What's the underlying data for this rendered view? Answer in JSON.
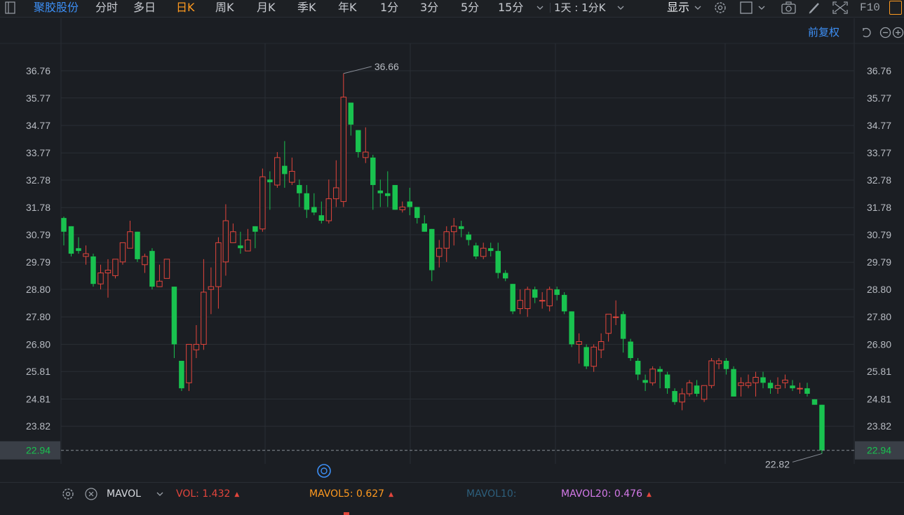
{
  "toolbar": {
    "stock_name": "聚胶股份",
    "periods": [
      "分时",
      "多日",
      "日K",
      "周K",
      "月K",
      "季K",
      "年K",
      "1分",
      "3分",
      "5分",
      "15分"
    ],
    "active_period": "日K",
    "interval_select": "1天 : 1分K",
    "display_label": "显示",
    "f10_label": "F10"
  },
  "chart": {
    "adjust_label": "前复权",
    "price_ticks": [
      "36.76",
      "35.77",
      "34.77",
      "33.77",
      "32.78",
      "31.78",
      "30.79",
      "29.79",
      "28.80",
      "27.80",
      "26.80",
      "25.81",
      "24.81",
      "23.82"
    ],
    "current_price": "22.94",
    "high_annotation": "36.66",
    "low_annotation": "22.82"
  },
  "indicator": {
    "name": "MAVOL",
    "vol_label": "VOL:",
    "vol_value": "1.432",
    "ma5_label": "MAVOL5:",
    "ma5_value": "0.627",
    "ma10_label": "MAVOL10:",
    "ma20_label": "MAVOL20:",
    "ma20_value": "0.476"
  },
  "colors": {
    "up": "#e2453c",
    "down": "#19c24f",
    "accent_blue": "#3d8ff5",
    "accent_orange": "#ff9a1f",
    "ma20_color": "#d479e8",
    "ma10_color": "#2d5f7c"
  },
  "chart_data": {
    "type": "candlestick",
    "y_axis_ticks": [
      36.76,
      35.77,
      34.77,
      33.77,
      32.78,
      31.78,
      30.79,
      29.79,
      28.8,
      27.8,
      26.8,
      25.81,
      24.81,
      23.82
    ],
    "ylim": [
      22.4,
      37.6
    ],
    "last_price": 22.94,
    "max_high": 36.66,
    "min_low": 22.82,
    "candles": [
      [
        31.4,
        30.9,
        31.45,
        30.4
      ],
      [
        31.1,
        30.1,
        31.1,
        30.0
      ],
      [
        30.3,
        30.2,
        30.7,
        30.1
      ],
      [
        30.0,
        30.1,
        30.4,
        29.7
      ],
      [
        30.0,
        29.0,
        30.1,
        28.9
      ],
      [
        29.0,
        29.4,
        29.7,
        28.8
      ],
      [
        29.4,
        29.5,
        29.9,
        28.5
      ],
      [
        29.3,
        29.9,
        29.9,
        29.2
      ],
      [
        29.8,
        30.5,
        30.5,
        29.7
      ],
      [
        30.3,
        30.9,
        31.3,
        30.3
      ],
      [
        30.9,
        29.9,
        30.9,
        29.8
      ],
      [
        29.7,
        30.0,
        30.1,
        29.4
      ],
      [
        30.2,
        28.9,
        30.3,
        28.8
      ],
      [
        28.9,
        29.1,
        29.7,
        28.9
      ],
      [
        29.2,
        29.9,
        29.9,
        29.2
      ],
      [
        28.9,
        26.8,
        28.9,
        26.3
      ],
      [
        26.2,
        25.2,
        26.2,
        25.1
      ],
      [
        25.4,
        26.8,
        26.8,
        25.1
      ],
      [
        26.6,
        26.8,
        27.5,
        26.3
      ],
      [
        26.8,
        28.7,
        29.9,
        26.6
      ],
      [
        28.8,
        28.9,
        29.6,
        27.9
      ],
      [
        28.9,
        30.5,
        30.7,
        28.1
      ],
      [
        29.8,
        31.3,
        31.9,
        29.3
      ],
      [
        30.5,
        30.9,
        31.2,
        30.5
      ],
      [
        30.4,
        30.3,
        30.9,
        30.1
      ],
      [
        30.2,
        30.6,
        31.0,
        30.2
      ],
      [
        31.1,
        30.9,
        31.1,
        30.3
      ],
      [
        31.0,
        32.9,
        33.2,
        30.9
      ],
      [
        32.8,
        32.7,
        33.1,
        31.7
      ],
      [
        32.6,
        33.6,
        33.8,
        32.5
      ],
      [
        33.3,
        33.0,
        34.2,
        32.5
      ],
      [
        32.7,
        33.1,
        33.6,
        32.6
      ],
      [
        32.6,
        32.3,
        32.8,
        31.8
      ],
      [
        32.3,
        31.7,
        32.6,
        31.4
      ],
      [
        31.8,
        31.6,
        32.3,
        31.5
      ],
      [
        31.5,
        31.3,
        32.0,
        31.2
      ],
      [
        31.3,
        32.1,
        32.8,
        31.2
      ],
      [
        32.1,
        32.5,
        33.5,
        31.8
      ],
      [
        32.0,
        35.8,
        36.66,
        31.8
      ],
      [
        35.6,
        34.8,
        35.6,
        34.4
      ],
      [
        34.6,
        33.8,
        34.6,
        33.6
      ],
      [
        33.6,
        33.8,
        34.7,
        33.4
      ],
      [
        33.6,
        32.6,
        33.7,
        31.7
      ],
      [
        32.4,
        32.3,
        32.8,
        31.8
      ],
      [
        32.3,
        32.2,
        33.1,
        31.8
      ],
      [
        32.6,
        31.7,
        32.6,
        31.7
      ],
      [
        31.7,
        31.8,
        32.0,
        31.6
      ],
      [
        32.0,
        31.8,
        32.5,
        31.5
      ],
      [
        31.8,
        31.4,
        31.8,
        31.2
      ],
      [
        31.2,
        30.9,
        31.5,
        30.9
      ],
      [
        31.0,
        29.5,
        31.0,
        29.1
      ],
      [
        30.0,
        30.3,
        30.6,
        29.6
      ],
      [
        30.3,
        30.9,
        31.1,
        29.8
      ],
      [
        30.9,
        31.1,
        31.4,
        30.4
      ],
      [
        31.1,
        31.0,
        31.3,
        30.7
      ],
      [
        30.8,
        30.6,
        30.9,
        30.4
      ],
      [
        30.4,
        30.0,
        30.5,
        29.9
      ],
      [
        30.0,
        30.3,
        30.5,
        29.9
      ],
      [
        30.3,
        30.2,
        30.5,
        30.0
      ],
      [
        30.2,
        29.4,
        30.5,
        29.2
      ],
      [
        29.4,
        29.2,
        29.5,
        29.1
      ],
      [
        29.0,
        28.0,
        29.0,
        27.9
      ],
      [
        28.1,
        28.4,
        28.8,
        27.9
      ],
      [
        28.1,
        28.8,
        28.9,
        27.8
      ],
      [
        28.8,
        28.5,
        28.9,
        28.3
      ],
      [
        28.4,
        28.4,
        28.7,
        28.1
      ],
      [
        28.2,
        28.8,
        28.9,
        28.0
      ],
      [
        28.8,
        28.6,
        28.9,
        28.4
      ],
      [
        28.6,
        28.0,
        28.7,
        27.9
      ],
      [
        28.0,
        26.8,
        28.0,
        26.7
      ],
      [
        26.8,
        26.9,
        27.2,
        26.1
      ],
      [
        26.7,
        26.0,
        26.8,
        25.9
      ],
      [
        26.0,
        26.7,
        26.8,
        25.8
      ],
      [
        26.6,
        26.9,
        27.2,
        26.3
      ],
      [
        27.2,
        27.9,
        27.9,
        26.9
      ],
      [
        27.8,
        27.8,
        28.4,
        27.5
      ],
      [
        27.9,
        27.0,
        28.0,
        26.5
      ],
      [
        26.9,
        26.3,
        27.0,
        26.2
      ],
      [
        26.2,
        25.7,
        26.3,
        25.5
      ],
      [
        25.5,
        25.4,
        25.7,
        25.1
      ],
      [
        25.4,
        25.9,
        26.0,
        25.3
      ],
      [
        25.9,
        25.8,
        26.0,
        25.2
      ],
      [
        25.7,
        25.2,
        25.8,
        25.0
      ],
      [
        25.1,
        24.7,
        25.2,
        24.6
      ],
      [
        24.7,
        25.0,
        25.2,
        24.4
      ],
      [
        25.0,
        25.4,
        25.5,
        24.9
      ],
      [
        25.3,
        25.0,
        25.5,
        24.9
      ],
      [
        24.8,
        25.3,
        25.3,
        24.7
      ],
      [
        25.3,
        26.2,
        26.3,
        25.2
      ],
      [
        26.1,
        26.2,
        26.3,
        25.9
      ],
      [
        26.2,
        25.9,
        26.3,
        25.7
      ],
      [
        25.9,
        24.9,
        26.0,
        24.9
      ],
      [
        25.3,
        25.4,
        25.6,
        24.9
      ],
      [
        25.3,
        25.4,
        25.7,
        25.2
      ],
      [
        25.4,
        25.6,
        25.8,
        24.9
      ],
      [
        25.6,
        25.4,
        25.8,
        25.2
      ],
      [
        25.4,
        25.2,
        25.5,
        25.0
      ],
      [
        25.2,
        25.3,
        25.6,
        25.0
      ],
      [
        25.4,
        25.5,
        25.7,
        25.2
      ],
      [
        25.3,
        25.2,
        25.5,
        25.1
      ],
      [
        25.2,
        25.2,
        25.4,
        25.0
      ],
      [
        25.2,
        25.0,
        25.4,
        24.9
      ],
      [
        24.8,
        24.6,
        24.8,
        24.6
      ],
      [
        24.6,
        22.94,
        24.6,
        22.82
      ]
    ]
  }
}
